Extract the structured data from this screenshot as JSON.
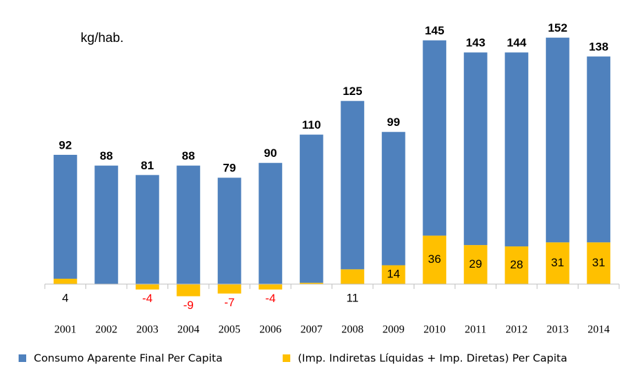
{
  "chart_data": {
    "type": "stacked-bar",
    "unit_label": "kg/hab.",
    "categories": [
      "2001",
      "2002",
      "2003",
      "2004",
      "2005",
      "2006",
      "2007",
      "2008",
      "2009",
      "2010",
      "2011",
      "2012",
      "2013",
      "2014"
    ],
    "series": [
      {
        "name": "(Imp. Indiretas Líquidas + Imp. Diretas) Per Capita",
        "color": "#ffc000",
        "values": [
          4,
          0,
          -4,
          -9,
          -7,
          -4,
          1,
          11,
          14,
          36,
          29,
          28,
          31,
          31
        ]
      },
      {
        "name": "Consumo Aparente Final Per Capita",
        "color": "#4f81bd",
        "values": [
          92,
          88,
          81,
          88,
          79,
          90,
          110,
          125,
          99,
          145,
          143,
          144,
          152,
          138
        ]
      }
    ],
    "legend_order": [
      1,
      0
    ],
    "negative_label_color": "#ff0000",
    "ylim": [
      -20,
      190
    ]
  }
}
